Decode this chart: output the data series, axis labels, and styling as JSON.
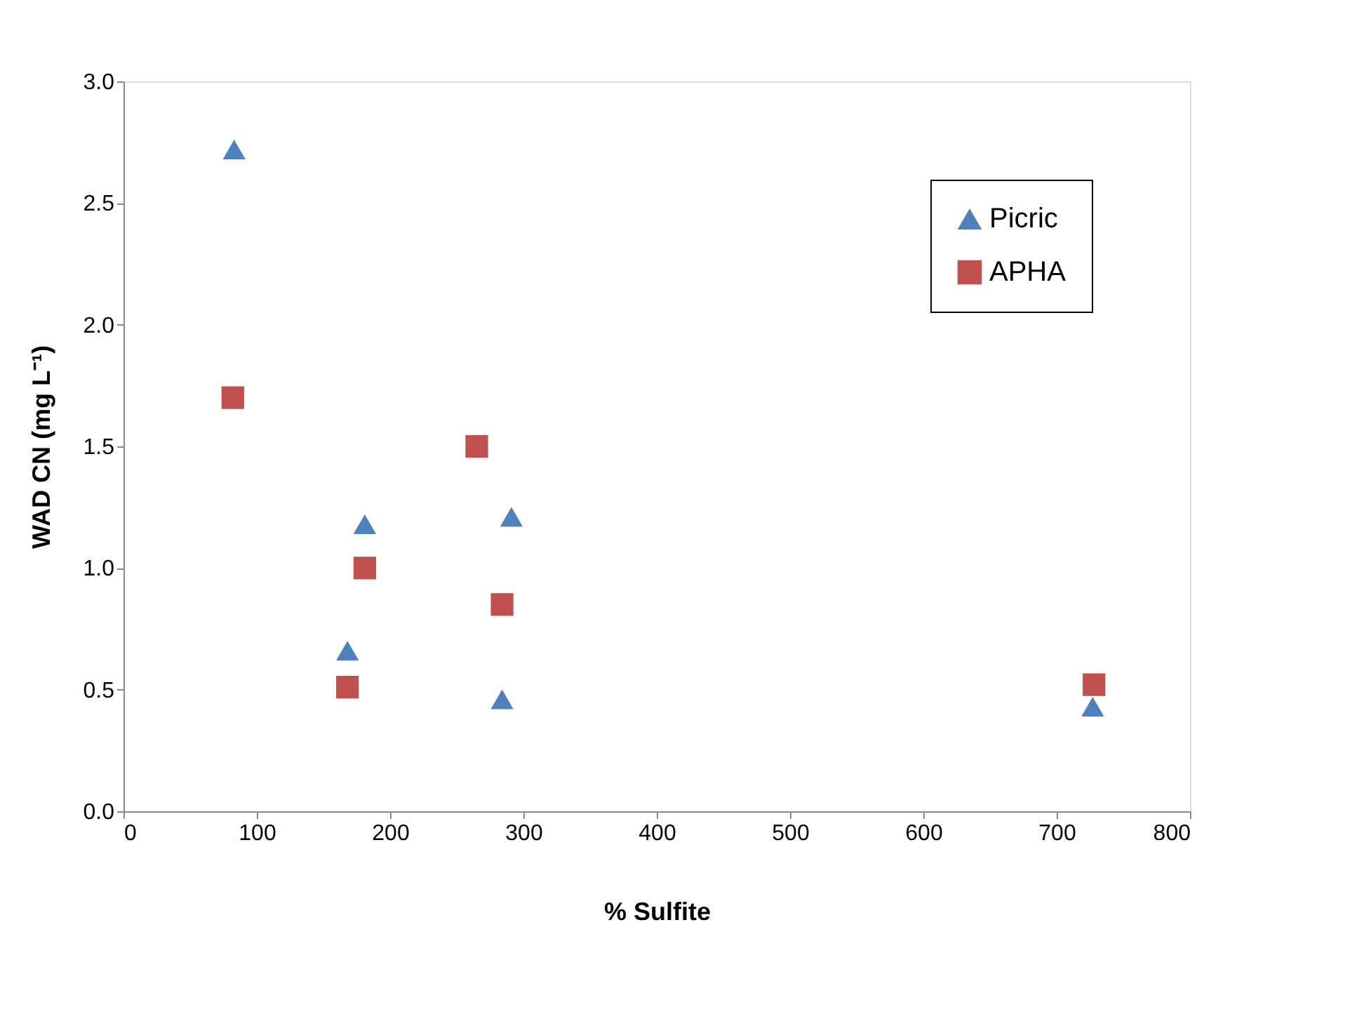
{
  "chart_data": {
    "type": "scatter",
    "xlabel": "% Sulfite",
    "ylabel": "WAD CN  (mg L⁻¹)",
    "xlim": [
      0,
      800
    ],
    "xticks": [
      0,
      100,
      200,
      300,
      400,
      500,
      600,
      700,
      800
    ],
    "ylim": [
      0,
      3
    ],
    "yticks": [
      {
        "value": 0,
        "label": "0.0"
      },
      {
        "value": 0.5,
        "label": "0.5"
      },
      {
        "value": 1,
        "label": "1.0"
      },
      {
        "value": 1.5,
        "label": "1.5"
      },
      {
        "value": 2,
        "label": "2.0"
      },
      {
        "value": 2.5,
        "label": "2.5"
      },
      {
        "value": 3,
        "label": "3.0"
      }
    ],
    "grid": false,
    "legend": "top right",
    "series": [
      {
        "name": "Picric",
        "color": "#4f81bd",
        "marker": "triangle",
        "x": [
          83,
          181,
          168,
          291,
          284,
          727
        ],
        "values": [
          2.72,
          1.18,
          0.66,
          1.21,
          0.46,
          0.43
        ]
      },
      {
        "name": "APHA",
        "color": "#c0504d",
        "marker": "square",
        "x": [
          82,
          181,
          168,
          265,
          284,
          728
        ],
        "values": [
          1.7,
          1.0,
          0.51,
          1.5,
          0.85,
          0.52
        ]
      }
    ]
  }
}
